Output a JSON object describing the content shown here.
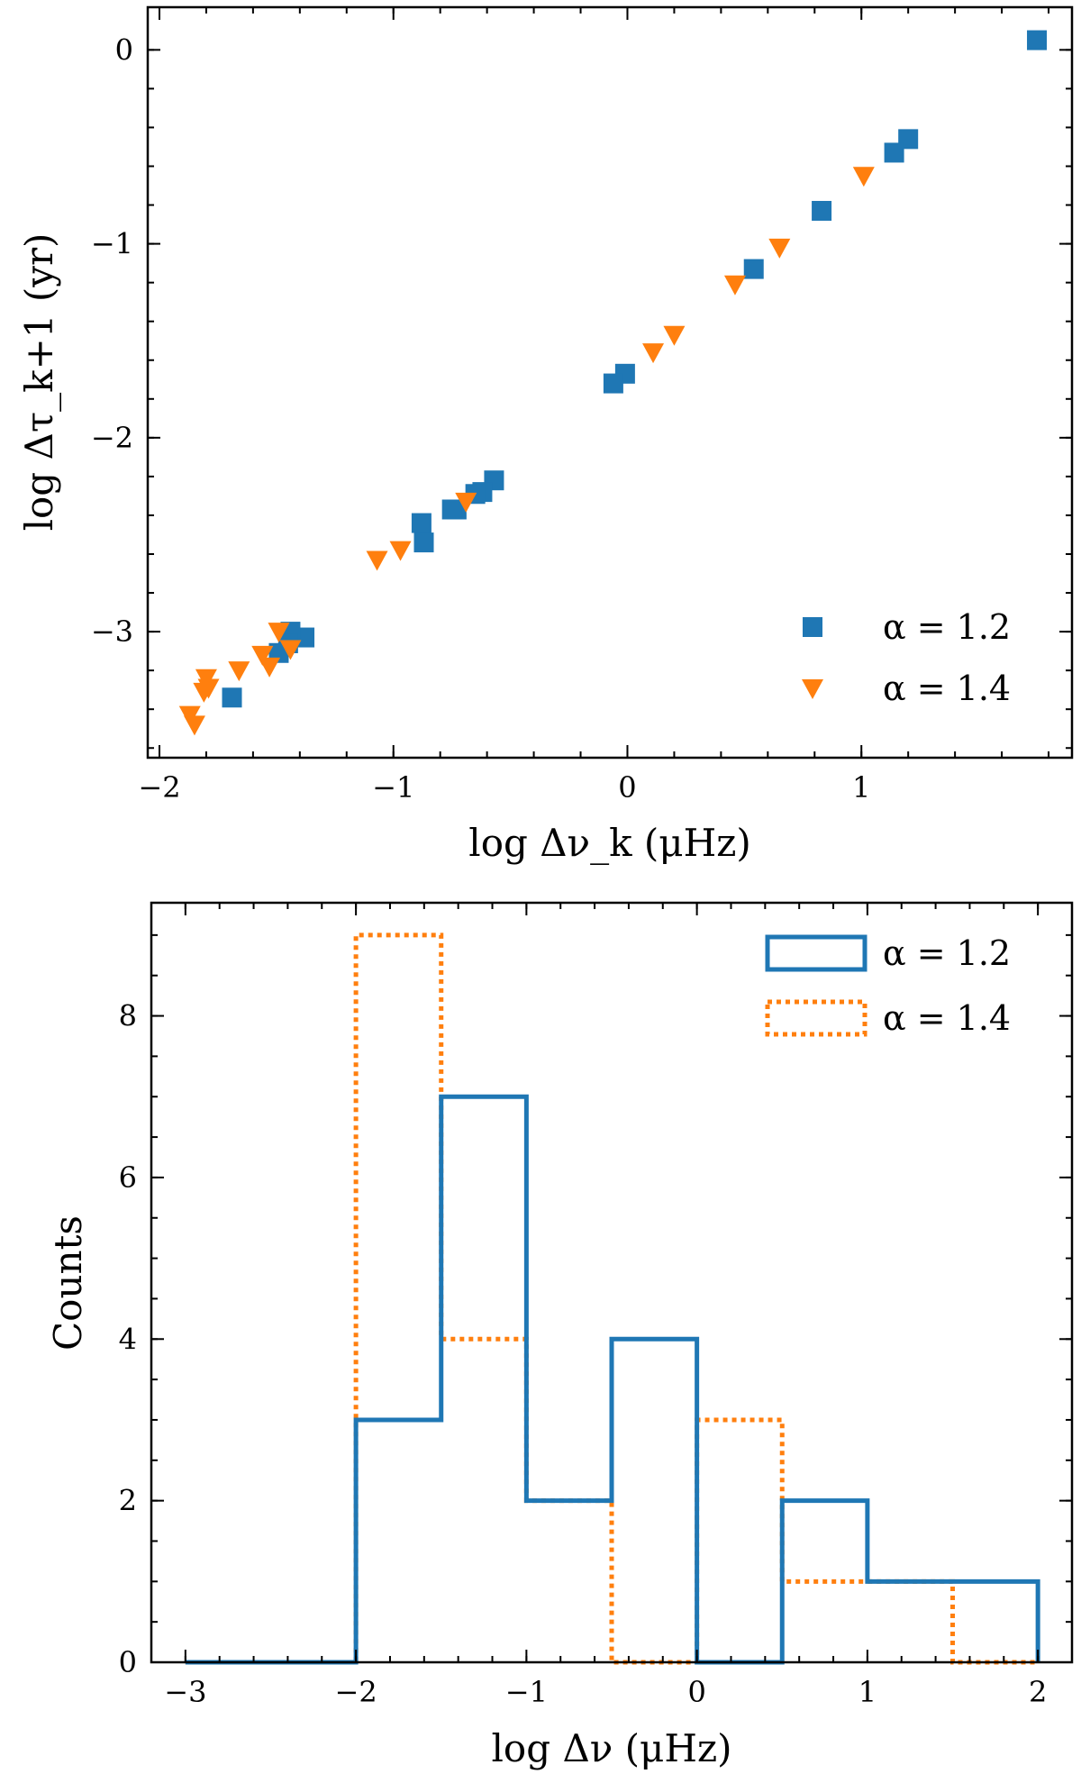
{
  "colors": {
    "blue": "#1f77b4",
    "orange": "#ff7f0e"
  },
  "chart_data": [
    {
      "type": "scatter",
      "xlabel": "log Δν_k (μHz)",
      "ylabel": "log Δτ_k+1 (yr)",
      "xlim": [
        -2.05,
        1.9
      ],
      "ylim": [
        -3.65,
        0.22
      ],
      "xticks": [
        -2,
        -1,
        0,
        1
      ],
      "xtick_labels": [
        "−2",
        "−1",
        "0",
        "1"
      ],
      "yticks": [
        -3,
        -2,
        -1,
        0
      ],
      "ytick_labels": [
        "−3",
        "−2",
        "−1",
        "0"
      ],
      "legend_position": "bottom-right",
      "series": [
        {
          "name": "α = 1.2",
          "marker": "square",
          "color": "#1f77b4",
          "points": [
            [
              1.75,
              0.05
            ],
            [
              1.2,
              -0.46
            ],
            [
              1.14,
              -0.53
            ],
            [
              0.83,
              -0.83
            ],
            [
              0.54,
              -1.13
            ],
            [
              -0.01,
              -1.67
            ],
            [
              -0.06,
              -1.72
            ],
            [
              -0.57,
              -2.22
            ],
            [
              -0.62,
              -2.28
            ],
            [
              -0.65,
              -2.29
            ],
            [
              -0.73,
              -2.37
            ],
            [
              -0.75,
              -2.37
            ],
            [
              -0.88,
              -2.44
            ],
            [
              -0.87,
              -2.54
            ],
            [
              -1.38,
              -3.03
            ],
            [
              -1.44,
              -3.0
            ],
            [
              -1.45,
              -3.06
            ],
            [
              -1.49,
              -3.11
            ],
            [
              -1.69,
              -3.34
            ]
          ]
        },
        {
          "name": "α = 1.4",
          "marker": "triangle-down",
          "color": "#ff7f0e",
          "points": [
            [
              1.01,
              -0.65
            ],
            [
              0.65,
              -1.02
            ],
            [
              0.46,
              -1.21
            ],
            [
              0.2,
              -1.47
            ],
            [
              0.11,
              -1.56
            ],
            [
              -0.69,
              -2.33
            ],
            [
              -0.97,
              -2.58
            ],
            [
              -1.07,
              -2.63
            ],
            [
              -1.44,
              -3.09
            ],
            [
              -1.49,
              -3.0
            ],
            [
              -1.53,
              -3.18
            ],
            [
              -1.56,
              -3.12
            ],
            [
              -1.66,
              -3.2
            ],
            [
              -1.79,
              -3.29
            ],
            [
              -1.8,
              -3.24
            ],
            [
              -1.81,
              -3.31
            ],
            [
              -1.85,
              -3.48
            ],
            [
              -1.87,
              -3.43
            ]
          ]
        }
      ]
    },
    {
      "type": "histogram",
      "xlabel": "log Δν (μHz)",
      "ylabel": "Counts",
      "xlim": [
        -3.2,
        2.2
      ],
      "ylim": [
        0,
        9.4
      ],
      "xticks": [
        -3,
        -2,
        -1,
        0,
        1,
        2
      ],
      "xtick_labels": [
        "−3",
        "−2",
        "−1",
        "0",
        "1",
        "2"
      ],
      "yticks": [
        0,
        2,
        4,
        6,
        8
      ],
      "ytick_labels": [
        "0",
        "2",
        "4",
        "6",
        "8"
      ],
      "bin_edges": [
        -3.0,
        -2.5,
        -2.0,
        -1.5,
        -1.0,
        -0.5,
        0.0,
        0.5,
        1.0,
        1.5,
        2.0
      ],
      "legend_position": "top-right",
      "series": [
        {
          "name": "α = 1.2",
          "style": "solid",
          "color": "#1f77b4",
          "counts": [
            0,
            0,
            3,
            7,
            2,
            4,
            0,
            2,
            1,
            1
          ]
        },
        {
          "name": "α = 1.4",
          "style": "dotted",
          "color": "#ff7f0e",
          "counts": [
            0,
            0,
            9,
            4,
            2,
            0,
            3,
            1,
            1,
            0
          ]
        }
      ]
    }
  ]
}
